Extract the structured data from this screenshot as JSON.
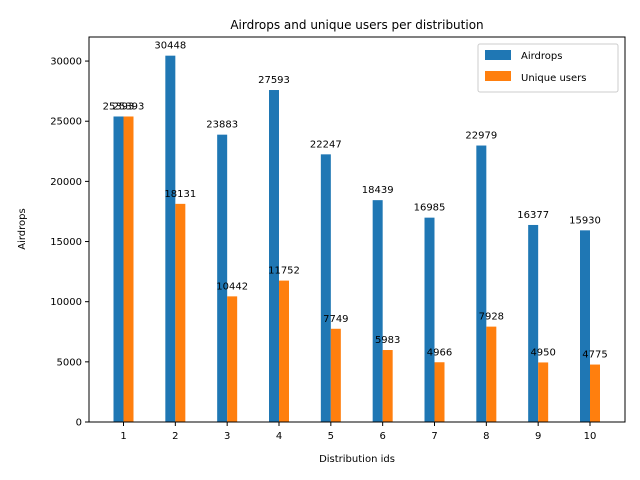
{
  "chart_data": {
    "type": "bar",
    "title": "Airdrops and unique users per distribution",
    "xlabel": "Distribution ids",
    "ylabel": "Airdrops",
    "categories": [
      "1",
      "2",
      "3",
      "4",
      "5",
      "6",
      "7",
      "8",
      "9",
      "10"
    ],
    "series": [
      {
        "name": "Airdrops",
        "color": "#1f77b4",
        "values": [
          25393,
          30448,
          23883,
          27593,
          22247,
          18439,
          16985,
          22979,
          16377,
          15930
        ]
      },
      {
        "name": "Unique users",
        "color": "#ff7f0e",
        "values": [
          25393,
          18131,
          10442,
          11752,
          7749,
          5983,
          4966,
          7928,
          4950,
          4775
        ]
      }
    ],
    "ylim": [
      0,
      32000
    ],
    "yticks": [
      0,
      5000,
      10000,
      15000,
      20000,
      25000,
      30000
    ],
    "grid": false,
    "legend_position": "top-right"
  }
}
